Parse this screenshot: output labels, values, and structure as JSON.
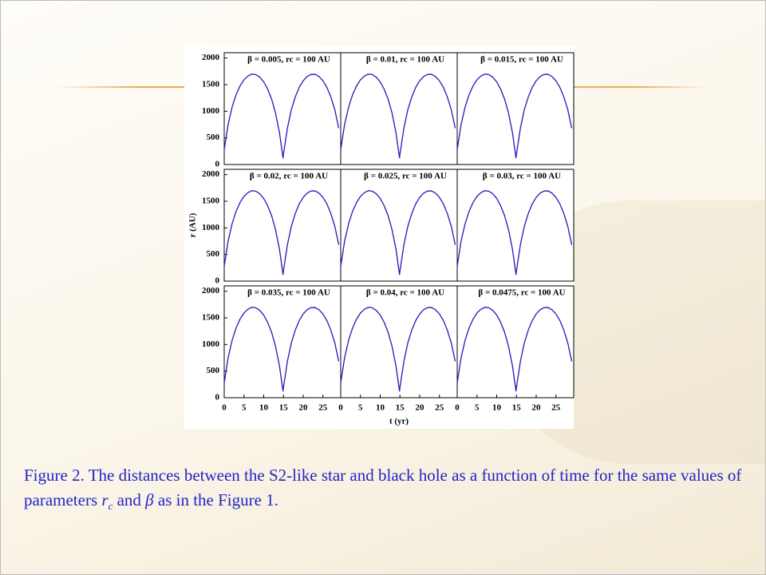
{
  "chart_data": [
    {
      "type": "line",
      "title": "β = 0.005, rc = 100 AU",
      "x": [
        0,
        1,
        2,
        3,
        4,
        5,
        6,
        7,
        8,
        9,
        10,
        11,
        12,
        13,
        14,
        14.9,
        15,
        16,
        17,
        18,
        19,
        20,
        21,
        22,
        23,
        24,
        25,
        26,
        27,
        28,
        29
      ],
      "series": [
        {
          "color": "#d42020",
          "values": [
            279,
            753,
            1079,
            1308,
            1475,
            1590,
            1662,
            1698,
            1689,
            1641,
            1552,
            1418,
            1228,
            968,
            594,
            120,
            190,
            682,
            1029,
            1271,
            1449,
            1573,
            1653,
            1694,
            1695,
            1653,
            1573,
            1449,
            1271,
            1029,
            682
          ]
        },
        {
          "color": "#2020d0",
          "values": [
            279,
            753,
            1079,
            1308,
            1475,
            1590,
            1662,
            1698,
            1689,
            1641,
            1552,
            1418,
            1228,
            968,
            594,
            120,
            190,
            682,
            1029,
            1271,
            1449,
            1573,
            1653,
            1694,
            1695,
            1653,
            1573,
            1449,
            1271,
            1029,
            682
          ]
        }
      ],
      "xlim": [
        0,
        29.5
      ],
      "ylim": [
        0,
        2100
      ],
      "yticks": [
        0,
        500,
        1000,
        1500,
        2000
      ]
    },
    {
      "type": "line",
      "title": "β = 0.01, rc = 100 AU",
      "x": [
        0,
        1,
        2,
        3,
        4,
        5,
        6,
        7,
        8,
        9,
        10,
        11,
        12,
        13,
        14,
        14.9,
        15,
        16,
        17,
        18,
        19,
        20,
        21,
        22,
        23,
        24,
        25,
        26,
        27,
        28,
        29
      ],
      "series": [
        {
          "color": "#d42020",
          "values": [
            279,
            753,
            1079,
            1308,
            1475,
            1590,
            1662,
            1698,
            1689,
            1641,
            1552,
            1418,
            1228,
            968,
            594,
            120,
            190,
            682,
            1029,
            1271,
            1449,
            1573,
            1653,
            1694,
            1695,
            1653,
            1573,
            1449,
            1271,
            1029,
            682
          ]
        },
        {
          "color": "#2020d0",
          "values": [
            279,
            753,
            1079,
            1308,
            1475,
            1590,
            1662,
            1698,
            1689,
            1641,
            1552,
            1418,
            1228,
            968,
            594,
            120,
            190,
            682,
            1029,
            1271,
            1449,
            1573,
            1653,
            1694,
            1695,
            1653,
            1573,
            1449,
            1271,
            1029,
            682
          ]
        }
      ],
      "xlim": [
        0,
        29.5
      ],
      "ylim": [
        0,
        2100
      ]
    },
    {
      "type": "line",
      "title": "β = 0.015, rc = 100 AU",
      "x": [
        0,
        1,
        2,
        3,
        4,
        5,
        6,
        7,
        8,
        9,
        10,
        11,
        12,
        13,
        14,
        14.9,
        15,
        16,
        17,
        18,
        19,
        20,
        21,
        22,
        23,
        24,
        25,
        26,
        27,
        28,
        29
      ],
      "series": [
        {
          "color": "#d42020",
          "values": [
            279,
            753,
            1079,
            1308,
            1475,
            1590,
            1662,
            1698,
            1689,
            1641,
            1552,
            1418,
            1228,
            968,
            594,
            120,
            190,
            682,
            1029,
            1271,
            1449,
            1573,
            1653,
            1694,
            1695,
            1653,
            1573,
            1449,
            1271,
            1029,
            682
          ]
        },
        {
          "color": "#2020d0",
          "values": [
            279,
            753,
            1079,
            1308,
            1475,
            1590,
            1662,
            1698,
            1689,
            1641,
            1552,
            1418,
            1228,
            968,
            594,
            120,
            190,
            682,
            1029,
            1271,
            1449,
            1573,
            1653,
            1694,
            1695,
            1653,
            1573,
            1449,
            1271,
            1029,
            682
          ]
        }
      ],
      "xlim": [
        0,
        29.5
      ],
      "ylim": [
        0,
        2100
      ]
    },
    {
      "type": "line",
      "title": "β = 0.02, rc = 100 AU",
      "y_label": "r (AU)",
      "x": [
        0,
        1,
        2,
        3,
        4,
        5,
        6,
        7,
        8,
        9,
        10,
        11,
        12,
        13,
        14,
        14.9,
        15,
        16,
        17,
        18,
        19,
        20,
        21,
        22,
        23,
        24,
        25,
        26,
        27,
        28,
        29
      ],
      "series": [
        {
          "color": "#d42020",
          "values": [
            279,
            753,
            1079,
            1308,
            1475,
            1590,
            1662,
            1698,
            1689,
            1641,
            1552,
            1418,
            1228,
            968,
            594,
            120,
            190,
            682,
            1029,
            1271,
            1449,
            1573,
            1653,
            1694,
            1695,
            1653,
            1573,
            1449,
            1271,
            1029,
            682
          ]
        },
        {
          "color": "#2020d0",
          "values": [
            279,
            753,
            1079,
            1308,
            1475,
            1590,
            1662,
            1698,
            1689,
            1641,
            1552,
            1418,
            1228,
            968,
            594,
            120,
            190,
            682,
            1029,
            1271,
            1449,
            1573,
            1653,
            1694,
            1695,
            1653,
            1573,
            1449,
            1271,
            1029,
            682
          ]
        }
      ],
      "xlim": [
        0,
        29.5
      ],
      "ylim": [
        0,
        2100
      ],
      "yticks": [
        0,
        500,
        1000,
        1500,
        2000
      ]
    },
    {
      "type": "line",
      "title": "β = 0.025, rc = 100 AU",
      "x": [
        0,
        1,
        2,
        3,
        4,
        5,
        6,
        7,
        8,
        9,
        10,
        11,
        12,
        13,
        14,
        14.9,
        15,
        16,
        17,
        18,
        19,
        20,
        21,
        22,
        23,
        24,
        25,
        26,
        27,
        28,
        29
      ],
      "series": [
        {
          "color": "#d42020",
          "values": [
            279,
            753,
            1079,
            1308,
            1475,
            1590,
            1662,
            1698,
            1689,
            1641,
            1552,
            1418,
            1228,
            968,
            594,
            120,
            190,
            682,
            1029,
            1271,
            1449,
            1573,
            1653,
            1694,
            1695,
            1653,
            1573,
            1449,
            1271,
            1029,
            682
          ]
        },
        {
          "color": "#2020d0",
          "values": [
            279,
            753,
            1079,
            1308,
            1475,
            1590,
            1662,
            1698,
            1689,
            1641,
            1552,
            1418,
            1228,
            968,
            594,
            120,
            190,
            682,
            1029,
            1271,
            1449,
            1573,
            1653,
            1694,
            1695,
            1653,
            1573,
            1449,
            1271,
            1029,
            682
          ]
        }
      ],
      "xlim": [
        0,
        29.5
      ],
      "ylim": [
        0,
        2100
      ]
    },
    {
      "type": "line",
      "title": "β = 0.03, rc = 100 AU",
      "x": [
        0,
        1,
        2,
        3,
        4,
        5,
        6,
        7,
        8,
        9,
        10,
        11,
        12,
        13,
        14,
        14.9,
        15,
        16,
        17,
        18,
        19,
        20,
        21,
        22,
        23,
        24,
        25,
        26,
        27,
        28,
        29
      ],
      "series": [
        {
          "color": "#d42020",
          "values": [
            279,
            753,
            1079,
            1308,
            1475,
            1590,
            1662,
            1698,
            1689,
            1641,
            1552,
            1418,
            1228,
            968,
            594,
            120,
            190,
            682,
            1029,
            1271,
            1449,
            1573,
            1653,
            1694,
            1695,
            1653,
            1573,
            1449,
            1271,
            1029,
            682
          ]
        },
        {
          "color": "#2020d0",
          "values": [
            279,
            753,
            1079,
            1308,
            1475,
            1590,
            1662,
            1698,
            1689,
            1641,
            1552,
            1418,
            1228,
            968,
            594,
            120,
            190,
            682,
            1029,
            1271,
            1449,
            1573,
            1653,
            1694,
            1695,
            1653,
            1573,
            1449,
            1271,
            1029,
            682
          ]
        }
      ],
      "xlim": [
        0,
        29.5
      ],
      "ylim": [
        0,
        2100
      ]
    },
    {
      "type": "line",
      "title": "β = 0.035, rc = 100 AU",
      "x": [
        0,
        1,
        2,
        3,
        4,
        5,
        6,
        7,
        8,
        9,
        10,
        11,
        12,
        13,
        14,
        14.9,
        15,
        16,
        17,
        18,
        19,
        20,
        21,
        22,
        23,
        24,
        25,
        26,
        27,
        28,
        29
      ],
      "series": [
        {
          "color": "#d42020",
          "values": [
            279,
            753,
            1079,
            1308,
            1475,
            1590,
            1662,
            1698,
            1689,
            1641,
            1552,
            1418,
            1228,
            968,
            594,
            120,
            190,
            682,
            1029,
            1271,
            1449,
            1573,
            1653,
            1694,
            1695,
            1653,
            1573,
            1449,
            1271,
            1029,
            682
          ]
        },
        {
          "color": "#2020d0",
          "values": [
            279,
            753,
            1079,
            1308,
            1475,
            1590,
            1662,
            1698,
            1689,
            1641,
            1552,
            1418,
            1228,
            968,
            594,
            120,
            190,
            682,
            1029,
            1271,
            1449,
            1573,
            1653,
            1694,
            1695,
            1653,
            1573,
            1449,
            1271,
            1029,
            682
          ]
        }
      ],
      "xlim": [
        0,
        29.5
      ],
      "ylim": [
        0,
        2100
      ],
      "yticks": [
        0,
        500,
        1000,
        1500,
        2000
      ],
      "xticks": [
        0,
        5,
        10,
        15,
        20,
        25
      ]
    },
    {
      "type": "line",
      "title": "β = 0.04, rc = 100 AU",
      "x_label": "t (yr)",
      "x": [
        0,
        1,
        2,
        3,
        4,
        5,
        6,
        7,
        8,
        9,
        10,
        11,
        12,
        13,
        14,
        14.9,
        15,
        16,
        17,
        18,
        19,
        20,
        21,
        22,
        23,
        24,
        25,
        26,
        27,
        28,
        29
      ],
      "series": [
        {
          "color": "#d42020",
          "values": [
            279,
            753,
            1079,
            1308,
            1475,
            1590,
            1662,
            1698,
            1689,
            1641,
            1552,
            1418,
            1228,
            968,
            594,
            120,
            190,
            682,
            1029,
            1271,
            1449,
            1573,
            1653,
            1694,
            1695,
            1653,
            1573,
            1449,
            1271,
            1029,
            682
          ]
        },
        {
          "color": "#2020d0",
          "values": [
            279,
            753,
            1079,
            1308,
            1475,
            1590,
            1662,
            1698,
            1689,
            1641,
            1552,
            1418,
            1228,
            968,
            594,
            120,
            190,
            682,
            1029,
            1271,
            1449,
            1573,
            1653,
            1694,
            1695,
            1653,
            1573,
            1449,
            1271,
            1029,
            682
          ]
        }
      ],
      "xlim": [
        0,
        29.5
      ],
      "ylim": [
        0,
        2100
      ],
      "xticks": [
        0,
        5,
        10,
        15,
        20,
        25
      ]
    },
    {
      "type": "line",
      "title": "β = 0.0475, rc = 100 AU",
      "x": [
        0,
        1,
        2,
        3,
        4,
        5,
        6,
        7,
        8,
        9,
        10,
        11,
        12,
        13,
        14,
        14.9,
        15,
        16,
        17,
        18,
        19,
        20,
        21,
        22,
        23,
        24,
        25,
        26,
        27,
        28,
        29
      ],
      "series": [
        {
          "color": "#d42020",
          "values": [
            279,
            753,
            1079,
            1308,
            1475,
            1590,
            1662,
            1698,
            1689,
            1641,
            1552,
            1418,
            1228,
            968,
            594,
            120,
            190,
            682,
            1029,
            1271,
            1449,
            1573,
            1653,
            1694,
            1695,
            1653,
            1573,
            1449,
            1271,
            1029,
            682
          ]
        },
        {
          "color": "#2020d0",
          "values": [
            279,
            753,
            1079,
            1308,
            1475,
            1590,
            1662,
            1698,
            1689,
            1641,
            1552,
            1418,
            1228,
            968,
            594,
            120,
            190,
            682,
            1029,
            1271,
            1449,
            1573,
            1653,
            1694,
            1695,
            1653,
            1573,
            1449,
            1271,
            1029,
            682
          ]
        }
      ],
      "xlim": [
        0,
        29.5
      ],
      "ylim": [
        0,
        2100
      ],
      "xticks": [
        0,
        5,
        10,
        15,
        20,
        25
      ]
    }
  ],
  "caption": [
    "Figure 2. The distances between the S2-like star and black hole as a function of time for the same values of parameters ",
    "r",
    "c",
    " and ",
    "β",
    " as in the Figure 1."
  ]
}
